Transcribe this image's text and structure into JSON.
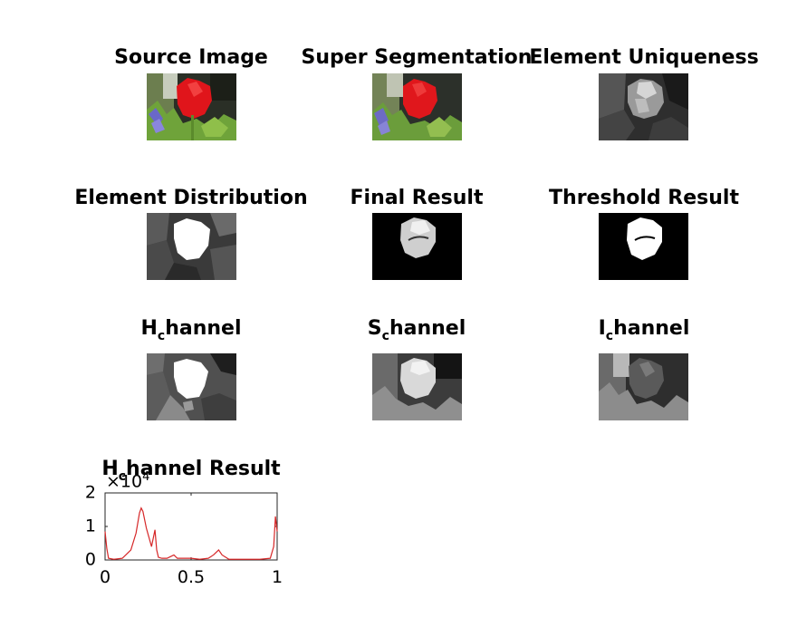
{
  "panels": [
    {
      "title": "Source Image"
    },
    {
      "title": "Super Segmentation"
    },
    {
      "title": "Element Uniqueness"
    },
    {
      "title": "Element Distribution"
    },
    {
      "title": "Final Result"
    },
    {
      "title": "Threshold Result"
    },
    {
      "title_main": "H",
      "title_sub": "c",
      "title_rest": "hannel"
    },
    {
      "title_main": "S",
      "title_sub": "c",
      "title_rest": "hannel"
    },
    {
      "title_main": "I",
      "title_sub": "c",
      "title_rest": "hannel"
    },
    {
      "title_main": "H",
      "title_sub": "c",
      "title_rest": "hannel Result"
    }
  ],
  "chart_data": {
    "type": "line",
    "title": "H_channel Result",
    "xlim": [
      0,
      1
    ],
    "ylim": [
      0,
      2
    ],
    "y_multiplier_label": "×10",
    "y_multiplier_exp": "4",
    "xticks": [
      "0",
      "0.5",
      "1"
    ],
    "yticks": [
      "0",
      "1",
      "2"
    ],
    "series_color": "#d62728",
    "x": [
      0,
      0.01,
      0.02,
      0.05,
      0.1,
      0.15,
      0.18,
      0.2,
      0.21,
      0.22,
      0.24,
      0.27,
      0.29,
      0.3,
      0.31,
      0.33,
      0.36,
      0.38,
      0.4,
      0.42,
      0.45,
      0.5,
      0.55,
      0.6,
      0.63,
      0.66,
      0.68,
      0.72,
      0.8,
      0.9,
      0.96,
      0.98,
      0.99,
      1.0
    ],
    "y": [
      0.85,
      0.35,
      0.05,
      0.02,
      0.05,
      0.3,
      0.8,
      1.4,
      1.55,
      1.45,
      0.95,
      0.4,
      0.9,
      0.3,
      0.08,
      0.05,
      0.05,
      0.1,
      0.15,
      0.05,
      0.05,
      0.05,
      0.02,
      0.05,
      0.15,
      0.3,
      0.15,
      0.02,
      0.02,
      0.02,
      0.05,
      0.4,
      1.3,
      0.85
    ]
  }
}
